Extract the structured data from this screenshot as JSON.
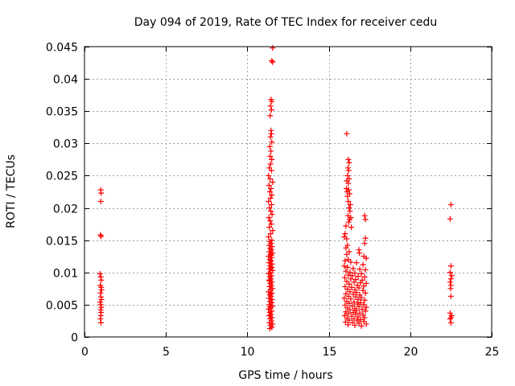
{
  "chart_data": {
    "type": "scatter",
    "title": "Day 094 of 2019, Rate Of TEC Index for receiver cedu",
    "xlabel": "GPS time / hours",
    "ylabel": "ROTI / TECUs",
    "xlim": [
      0,
      25
    ],
    "ylim": [
      0,
      0.045
    ],
    "x_ticks": [
      0,
      5,
      10,
      15,
      20,
      25
    ],
    "x_tick_labels": [
      "0",
      "5",
      "10",
      "15",
      "20",
      "25"
    ],
    "y_ticks": [
      0,
      0.005,
      0.01,
      0.015,
      0.02,
      0.025,
      0.03,
      0.035,
      0.04,
      0.045
    ],
    "y_tick_labels": [
      "0",
      "0.005",
      "0.01",
      "0.015",
      "0.02",
      "0.025",
      "0.03",
      "0.035",
      "0.04",
      "0.045"
    ],
    "grid": true,
    "marker": "+",
    "color": "#ff0000",
    "series": [
      {
        "name": "ROTI",
        "points": [
          [
            1.0,
            0.0228
          ],
          [
            1.02,
            0.0223
          ],
          [
            1.0,
            0.021
          ],
          [
            0.98,
            0.0158
          ],
          [
            1.02,
            0.0156
          ],
          [
            0.95,
            0.0098
          ],
          [
            1.0,
            0.0093
          ],
          [
            1.03,
            0.0088
          ],
          [
            0.97,
            0.008
          ],
          [
            1.02,
            0.0077
          ],
          [
            1.05,
            0.0073
          ],
          [
            0.98,
            0.0068
          ],
          [
            1.01,
            0.0062
          ],
          [
            1.04,
            0.0058
          ],
          [
            0.96,
            0.0054
          ],
          [
            1.0,
            0.005
          ],
          [
            1.03,
            0.0046
          ],
          [
            0.99,
            0.0042
          ],
          [
            1.02,
            0.0038
          ],
          [
            1.0,
            0.0033
          ],
          [
            0.98,
            0.0028
          ],
          [
            1.01,
            0.0022
          ],
          [
            11.55,
            0.0448
          ],
          [
            11.5,
            0.0428
          ],
          [
            11.55,
            0.0426
          ],
          [
            11.45,
            0.0368
          ],
          [
            11.5,
            0.0365
          ],
          [
            11.42,
            0.0358
          ],
          [
            11.48,
            0.0352
          ],
          [
            11.4,
            0.0343
          ],
          [
            11.45,
            0.032
          ],
          [
            11.48,
            0.0315
          ],
          [
            11.42,
            0.031
          ],
          [
            11.5,
            0.0302
          ],
          [
            11.38,
            0.0295
          ],
          [
            11.45,
            0.0288
          ],
          [
            11.4,
            0.028
          ],
          [
            11.5,
            0.0275
          ],
          [
            11.42,
            0.0268
          ],
          [
            11.35,
            0.0262
          ],
          [
            11.48,
            0.0258
          ],
          [
            11.3,
            0.025
          ],
          [
            11.4,
            0.0245
          ],
          [
            11.55,
            0.024
          ],
          [
            11.33,
            0.0235
          ],
          [
            11.45,
            0.023
          ],
          [
            11.38,
            0.0225
          ],
          [
            11.5,
            0.022
          ],
          [
            11.42,
            0.0215
          ],
          [
            11.3,
            0.021
          ],
          [
            11.48,
            0.0205
          ],
          [
            11.36,
            0.02
          ],
          [
            11.44,
            0.0195
          ],
          [
            11.52,
            0.019
          ],
          [
            11.32,
            0.0185
          ],
          [
            11.4,
            0.018
          ],
          [
            11.47,
            0.0175
          ],
          [
            11.35,
            0.017
          ],
          [
            11.55,
            0.0165
          ],
          [
            11.43,
            0.016
          ],
          [
            11.3,
            0.0155
          ],
          [
            11.5,
            0.015
          ],
          [
            11.38,
            0.0148
          ],
          [
            11.45,
            0.0145
          ],
          [
            11.33,
            0.0142
          ],
          [
            11.52,
            0.014
          ],
          [
            11.4,
            0.0137
          ],
          [
            11.48,
            0.0135
          ],
          [
            11.35,
            0.0132
          ],
          [
            11.55,
            0.013
          ],
          [
            11.42,
            0.0128
          ],
          [
            11.3,
            0.0125
          ],
          [
            11.5,
            0.0123
          ],
          [
            11.38,
            0.012
          ],
          [
            11.45,
            0.0118
          ],
          [
            11.33,
            0.0115
          ],
          [
            11.52,
            0.0113
          ],
          [
            11.4,
            0.011
          ],
          [
            11.48,
            0.0108
          ],
          [
            11.35,
            0.0105
          ],
          [
            11.55,
            0.0103
          ],
          [
            11.42,
            0.01
          ],
          [
            11.3,
            0.0098
          ],
          [
            11.5,
            0.0095
          ],
          [
            11.38,
            0.0093
          ],
          [
            11.45,
            0.009
          ],
          [
            11.33,
            0.0088
          ],
          [
            11.52,
            0.0085
          ],
          [
            11.4,
            0.0083
          ],
          [
            11.48,
            0.008
          ],
          [
            11.35,
            0.0078
          ],
          [
            11.55,
            0.0075
          ],
          [
            11.42,
            0.0073
          ],
          [
            11.3,
            0.007
          ],
          [
            11.5,
            0.0068
          ],
          [
            11.38,
            0.0065
          ],
          [
            11.45,
            0.0063
          ],
          [
            11.33,
            0.006
          ],
          [
            11.52,
            0.0058
          ],
          [
            11.4,
            0.0055
          ],
          [
            11.48,
            0.0053
          ],
          [
            11.35,
            0.005
          ],
          [
            11.55,
            0.0048
          ],
          [
            11.42,
            0.0045
          ],
          [
            11.3,
            0.0043
          ],
          [
            11.5,
            0.004
          ],
          [
            11.38,
            0.0038
          ],
          [
            11.45,
            0.0035
          ],
          [
            11.33,
            0.0033
          ],
          [
            11.52,
            0.003
          ],
          [
            11.4,
            0.0028
          ],
          [
            11.48,
            0.0025
          ],
          [
            11.35,
            0.0022
          ],
          [
            11.55,
            0.002
          ],
          [
            11.42,
            0.0018
          ],
          [
            11.5,
            0.0015
          ],
          [
            11.38,
            0.0013
          ],
          [
            11.46,
            0.0107
          ],
          [
            11.36,
            0.0087
          ],
          [
            11.44,
            0.0067
          ],
          [
            11.39,
            0.0047
          ],
          [
            11.47,
            0.0127
          ],
          [
            16.1,
            0.0315
          ],
          [
            16.2,
            0.0275
          ],
          [
            16.25,
            0.027
          ],
          [
            16.18,
            0.0262
          ],
          [
            16.22,
            0.0258
          ],
          [
            16.15,
            0.025
          ],
          [
            16.25,
            0.0245
          ],
          [
            16.1,
            0.0242
          ],
          [
            16.2,
            0.0238
          ],
          [
            16.08,
            0.023
          ],
          [
            16.22,
            0.0228
          ],
          [
            16.12,
            0.0225
          ],
          [
            16.28,
            0.0222
          ],
          [
            16.15,
            0.0218
          ],
          [
            16.2,
            0.021
          ],
          [
            16.32,
            0.0205
          ],
          [
            16.25,
            0.02
          ],
          [
            16.3,
            0.0195
          ],
          [
            16.18,
            0.0188
          ],
          [
            16.35,
            0.0185
          ],
          [
            16.28,
            0.0182
          ],
          [
            17.2,
            0.0188
          ],
          [
            17.25,
            0.0182
          ],
          [
            16.22,
            0.0178
          ],
          [
            16.05,
            0.0172
          ],
          [
            16.38,
            0.017
          ],
          [
            16.0,
            0.016
          ],
          [
            15.95,
            0.0155
          ],
          [
            16.1,
            0.0152
          ],
          [
            17.25,
            0.0153
          ],
          [
            17.2,
            0.0145
          ],
          [
            16.15,
            0.0142
          ],
          [
            16.05,
            0.0138
          ],
          [
            16.25,
            0.0132
          ],
          [
            16.1,
            0.0128
          ],
          [
            16.85,
            0.0135
          ],
          [
            16.88,
            0.013
          ],
          [
            17.15,
            0.0125
          ],
          [
            17.3,
            0.0122
          ],
          [
            16.2,
            0.012
          ],
          [
            16.0,
            0.0118
          ],
          [
            16.35,
            0.0116
          ],
          [
            16.7,
            0.0115
          ],
          [
            17.1,
            0.0112
          ],
          [
            15.95,
            0.011
          ],
          [
            16.15,
            0.0108
          ],
          [
            16.5,
            0.0106
          ],
          [
            16.9,
            0.0105
          ],
          [
            17.25,
            0.0104
          ],
          [
            16.05,
            0.0102
          ],
          [
            16.3,
            0.01
          ],
          [
            16.6,
            0.0099
          ],
          [
            17.0,
            0.0098
          ],
          [
            16.2,
            0.0096
          ],
          [
            16.45,
            0.0095
          ],
          [
            16.8,
            0.0094
          ],
          [
            17.2,
            0.0093
          ],
          [
            15.98,
            0.0092
          ],
          [
            16.35,
            0.009
          ],
          [
            16.65,
            0.0089
          ],
          [
            17.05,
            0.0088
          ],
          [
            16.1,
            0.0086
          ],
          [
            16.55,
            0.0085
          ],
          [
            16.95,
            0.0084
          ],
          [
            17.3,
            0.0083
          ],
          [
            16.25,
            0.0082
          ],
          [
            16.75,
            0.008
          ],
          [
            17.15,
            0.0079
          ],
          [
            16.0,
            0.0078
          ],
          [
            16.4,
            0.0077
          ],
          [
            16.85,
            0.0076
          ],
          [
            16.15,
            0.0074
          ],
          [
            16.6,
            0.0073
          ],
          [
            17.1,
            0.0072
          ],
          [
            16.3,
            0.007
          ],
          [
            16.7,
            0.0069
          ],
          [
            17.25,
            0.0068
          ],
          [
            16.05,
            0.0067
          ],
          [
            16.5,
            0.0066
          ],
          [
            16.9,
            0.0065
          ],
          [
            16.2,
            0.0063
          ],
          [
            16.65,
            0.0062
          ],
          [
            17.0,
            0.0061
          ],
          [
            15.95,
            0.006
          ],
          [
            16.35,
            0.0059
          ],
          [
            16.8,
            0.0058
          ],
          [
            17.2,
            0.0057
          ],
          [
            16.1,
            0.0055
          ],
          [
            16.55,
            0.0054
          ],
          [
            16.95,
            0.0053
          ],
          [
            16.25,
            0.0052
          ],
          [
            16.75,
            0.0051
          ],
          [
            17.15,
            0.005
          ],
          [
            16.0,
            0.0049
          ],
          [
            16.45,
            0.0048
          ],
          [
            16.85,
            0.0047
          ],
          [
            17.3,
            0.0046
          ],
          [
            16.15,
            0.0045
          ],
          [
            16.6,
            0.0044
          ],
          [
            17.05,
            0.0043
          ],
          [
            16.3,
            0.0042
          ],
          [
            16.7,
            0.0041
          ],
          [
            17.25,
            0.004
          ],
          [
            16.05,
            0.0039
          ],
          [
            16.5,
            0.0038
          ],
          [
            16.9,
            0.0037
          ],
          [
            16.2,
            0.0036
          ],
          [
            16.65,
            0.0035
          ],
          [
            17.1,
            0.0034
          ],
          [
            15.98,
            0.0033
          ],
          [
            16.4,
            0.0032
          ],
          [
            16.8,
            0.0031
          ],
          [
            17.2,
            0.003
          ],
          [
            16.12,
            0.0029
          ],
          [
            16.55,
            0.0028
          ],
          [
            16.95,
            0.0027
          ],
          [
            16.25,
            0.0026
          ],
          [
            16.75,
            0.0025
          ],
          [
            17.15,
            0.0024
          ],
          [
            16.02,
            0.0023
          ],
          [
            16.45,
            0.0022
          ],
          [
            16.85,
            0.0021
          ],
          [
            17.3,
            0.002
          ],
          [
            16.18,
            0.0019
          ],
          [
            16.6,
            0.0018
          ],
          [
            17.0,
            0.0017
          ],
          [
            22.5,
            0.0205
          ],
          [
            22.45,
            0.0183
          ],
          [
            22.5,
            0.011
          ],
          [
            22.45,
            0.01
          ],
          [
            22.55,
            0.0095
          ],
          [
            22.5,
            0.009
          ],
          [
            22.45,
            0.0085
          ],
          [
            22.5,
            0.008
          ],
          [
            22.48,
            0.0075
          ],
          [
            22.5,
            0.0063
          ],
          [
            22.45,
            0.0037
          ],
          [
            22.55,
            0.0033
          ],
          [
            22.5,
            0.003
          ],
          [
            22.45,
            0.0028
          ],
          [
            22.5,
            0.0022
          ]
        ]
      }
    ]
  }
}
